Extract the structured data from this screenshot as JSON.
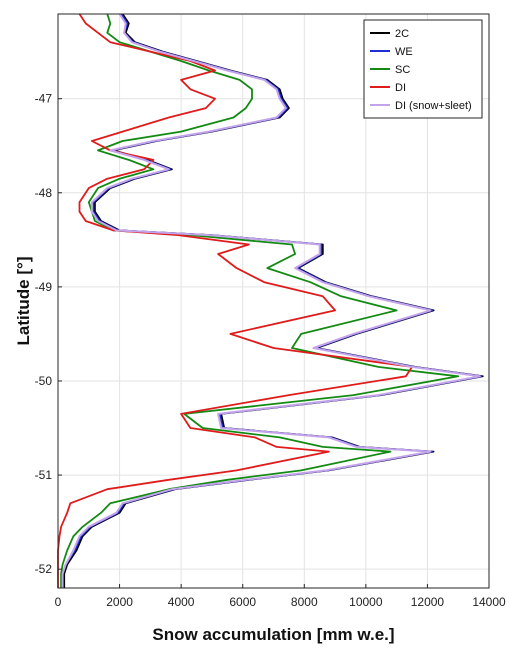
{
  "chart_data": {
    "type": "line",
    "orientation": "series plotted as latitude (y) vs snow accumulation (x)",
    "xlabel": "Snow accumulation [mm w.e.]",
    "ylabel": "Latitude [°]",
    "xlim": [
      0,
      14000
    ],
    "ylim": [
      -52.2,
      -46.1
    ],
    "xticks": [
      0,
      2000,
      4000,
      6000,
      8000,
      10000,
      12000,
      14000
    ],
    "yticks": [
      -52,
      -51,
      -50,
      -49,
      -48,
      -47
    ],
    "grid": true,
    "legend_position": "top-right",
    "series": [
      {
        "name": "2C",
        "color": "#000000",
        "x": [
          2100,
          2300,
          2200,
          2500,
          3400,
          4500,
          5600,
          6800,
          7200,
          7300,
          7500,
          7200,
          5000,
          3200,
          1800,
          2900,
          3700,
          2500,
          1700,
          1200,
          1200,
          1400,
          2000,
          5000,
          8600,
          8600,
          7800,
          8700,
          10200,
          12200,
          9700,
          8400,
          11600,
          13800,
          10500,
          5300,
          5400,
          8900,
          9800,
          12200,
          8800,
          6200,
          3800,
          2200,
          2000,
          1100,
          800,
          600,
          300,
          200,
          200
        ],
        "y": [
          -46.1,
          -46.2,
          -46.3,
          -46.4,
          -46.5,
          -46.6,
          -46.7,
          -46.8,
          -46.9,
          -47.0,
          -47.1,
          -47.2,
          -47.35,
          -47.45,
          -47.55,
          -47.65,
          -47.75,
          -47.85,
          -47.95,
          -48.1,
          -48.2,
          -48.3,
          -48.4,
          -48.45,
          -48.55,
          -48.65,
          -48.8,
          -48.95,
          -49.1,
          -49.25,
          -49.5,
          -49.65,
          -49.85,
          -49.95,
          -50.15,
          -50.35,
          -50.5,
          -50.6,
          -50.7,
          -50.75,
          -50.95,
          -51.05,
          -51.15,
          -51.3,
          -51.4,
          -51.55,
          -51.65,
          -51.8,
          -51.95,
          -52.05,
          -52.2
        ]
      },
      {
        "name": "WE",
        "color": "#1f2fd6",
        "x": [
          2050,
          2250,
          2150,
          2450,
          3350,
          4450,
          5550,
          6750,
          7150,
          7250,
          7450,
          7150,
          4950,
          3150,
          1750,
          2850,
          3650,
          2450,
          1650,
          1150,
          1150,
          1350,
          1950,
          4950,
          8550,
          8550,
          7750,
          8650,
          10150,
          12150,
          9650,
          8350,
          11550,
          13750,
          10450,
          5250,
          5350,
          8850,
          9750,
          12150,
          8750,
          6150,
          3750,
          2150,
          1950,
          1050,
          750,
          550,
          250,
          150,
          150
        ],
        "y": [
          -46.1,
          -46.2,
          -46.3,
          -46.4,
          -46.5,
          -46.6,
          -46.7,
          -46.8,
          -46.9,
          -47.0,
          -47.1,
          -47.2,
          -47.35,
          -47.45,
          -47.55,
          -47.65,
          -47.75,
          -47.85,
          -47.95,
          -48.1,
          -48.2,
          -48.3,
          -48.4,
          -48.45,
          -48.55,
          -48.65,
          -48.8,
          -48.95,
          -49.1,
          -49.25,
          -49.5,
          -49.65,
          -49.85,
          -49.95,
          -50.15,
          -50.35,
          -50.5,
          -50.6,
          -50.7,
          -50.75,
          -50.95,
          -51.05,
          -51.15,
          -51.3,
          -51.4,
          -51.55,
          -51.65,
          -51.8,
          -51.95,
          -52.05,
          -52.2
        ]
      },
      {
        "name": "SC",
        "color": "#138a13",
        "x": [
          1600,
          1700,
          1600,
          2000,
          3000,
          4000,
          4900,
          5900,
          6300,
          6300,
          6100,
          5700,
          4000,
          2100,
          1300,
          2300,
          3100,
          2000,
          1300,
          1000,
          1100,
          1200,
          1800,
          4300,
          7600,
          7700,
          6800,
          8200,
          9200,
          11000,
          7900,
          7600,
          10400,
          13000,
          9600,
          4100,
          4700,
          7200,
          8600,
          10800,
          7900,
          5500,
          3600,
          1700,
          1400,
          800,
          500,
          300,
          150,
          100,
          100
        ],
        "y": [
          -46.1,
          -46.2,
          -46.3,
          -46.4,
          -46.5,
          -46.6,
          -46.7,
          -46.8,
          -46.9,
          -47.0,
          -47.1,
          -47.2,
          -47.35,
          -47.45,
          -47.55,
          -47.65,
          -47.75,
          -47.85,
          -47.95,
          -48.1,
          -48.2,
          -48.3,
          -48.4,
          -48.45,
          -48.55,
          -48.65,
          -48.8,
          -48.95,
          -49.1,
          -49.25,
          -49.5,
          -49.65,
          -49.85,
          -49.95,
          -50.15,
          -50.35,
          -50.5,
          -50.6,
          -50.7,
          -50.75,
          -50.95,
          -51.05,
          -51.15,
          -51.3,
          -51.4,
          -51.55,
          -51.65,
          -51.8,
          -51.95,
          -52.05,
          -52.2
        ]
      },
      {
        "name": "DI",
        "color": "#e01b1b",
        "x": [
          700,
          900,
          1300,
          1700,
          3000,
          4300,
          5100,
          4000,
          4300,
          5100,
          4800,
          3600,
          2100,
          1100,
          1700,
          3100,
          2800,
          1600,
          1000,
          700,
          700,
          900,
          1800,
          3900,
          6200,
          5200,
          5800,
          6700,
          8600,
          9000,
          5600,
          7000,
          11500,
          11300,
          7500,
          4000,
          4300,
          6400,
          7100,
          8800,
          5800,
          3600,
          1600,
          400,
          300,
          100,
          50,
          0,
          0,
          0,
          0
        ],
        "y": [
          -46.1,
          -46.2,
          -46.3,
          -46.4,
          -46.5,
          -46.6,
          -46.7,
          -46.8,
          -46.9,
          -47.0,
          -47.1,
          -47.2,
          -47.35,
          -47.45,
          -47.55,
          -47.65,
          -47.75,
          -47.85,
          -47.95,
          -48.1,
          -48.2,
          -48.3,
          -48.4,
          -48.45,
          -48.55,
          -48.65,
          -48.8,
          -48.95,
          -49.1,
          -49.25,
          -49.5,
          -49.65,
          -49.85,
          -49.95,
          -50.15,
          -50.35,
          -50.5,
          -50.6,
          -50.7,
          -50.75,
          -50.95,
          -51.05,
          -51.15,
          -51.3,
          -51.4,
          -51.55,
          -51.65,
          -51.8,
          -51.95,
          -52.05,
          -52.2
        ]
      },
      {
        "name": "DI (snow+sleet)",
        "color": "#c3a3ea",
        "x": [
          2000,
          2200,
          2150,
          2400,
          3300,
          4400,
          5500,
          6700,
          7100,
          7200,
          7400,
          7100,
          4900,
          3100,
          1700,
          2800,
          3600,
          2400,
          1600,
          1100,
          1100,
          1300,
          1900,
          4900,
          8500,
          8500,
          7700,
          8600,
          10100,
          12100,
          9600,
          8300,
          11500,
          13700,
          10400,
          5200,
          5300,
          8800,
          9700,
          12100,
          8700,
          6100,
          3700,
          2100,
          1900,
          1000,
          700,
          500,
          250,
          150,
          150
        ],
        "y": [
          -46.1,
          -46.2,
          -46.3,
          -46.4,
          -46.5,
          -46.6,
          -46.7,
          -46.8,
          -46.9,
          -47.0,
          -47.1,
          -47.2,
          -47.35,
          -47.45,
          -47.55,
          -47.65,
          -47.75,
          -47.85,
          -47.95,
          -48.1,
          -48.2,
          -48.3,
          -48.4,
          -48.45,
          -48.55,
          -48.65,
          -48.8,
          -48.95,
          -49.1,
          -49.25,
          -49.5,
          -49.65,
          -49.85,
          -49.95,
          -50.15,
          -50.35,
          -50.5,
          -50.6,
          -50.7,
          -50.75,
          -50.95,
          -51.05,
          -51.15,
          -51.3,
          -51.4,
          -51.55,
          -51.65,
          -51.8,
          -51.95,
          -52.05,
          -52.2
        ]
      }
    ]
  }
}
